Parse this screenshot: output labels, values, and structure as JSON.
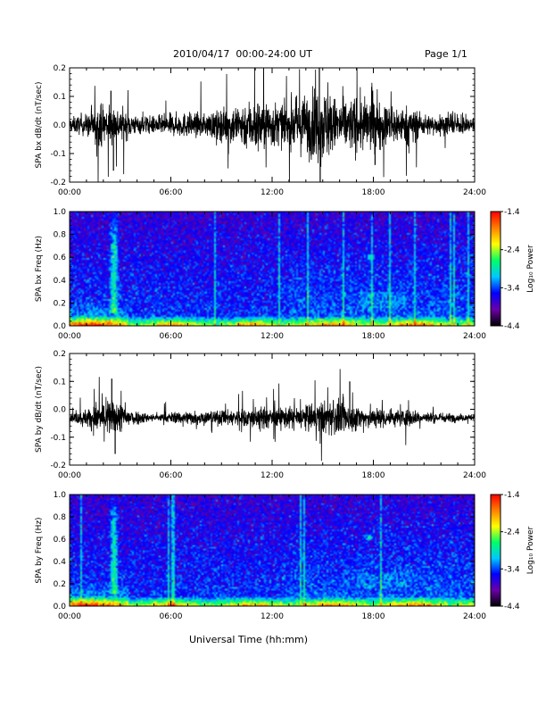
{
  "header": {
    "title": "2010/04/17  00:00-24:00 UT",
    "page": "Page 1/1"
  },
  "x_axis_title": "Universal Time (hh:mm)",
  "chart_data": [
    {
      "type": "line",
      "ylabel": "SPA bx dB/dt (nT/sec)",
      "xlim": [
        0,
        24
      ],
      "ylim": [
        -0.2,
        0.2
      ],
      "x_ticks": [
        "00:00",
        "06:00",
        "12:00",
        "18:00",
        "24:00"
      ],
      "y_ticks": [
        "-0.2",
        "-0.1",
        "0.0",
        "0.1",
        "0.2"
      ],
      "envelope_hours": [
        0,
        1,
        2,
        3,
        4,
        5,
        6,
        7,
        8,
        9,
        10,
        11,
        12,
        13,
        14,
        15,
        16,
        17,
        18,
        19,
        20,
        21,
        22,
        23,
        24
      ],
      "amplitude_envelope": [
        0.04,
        0.06,
        0.12,
        0.09,
        0.05,
        0.05,
        0.06,
        0.07,
        0.06,
        0.09,
        0.12,
        0.15,
        0.13,
        0.1,
        0.17,
        0.21,
        0.13,
        0.16,
        0.14,
        0.11,
        0.1,
        0.06,
        0.05,
        0.05,
        0.04
      ],
      "peaks": [
        {
          "x": 2.45,
          "y": 0.12
        },
        {
          "x": 2.6,
          "y": -0.16
        },
        {
          "x": 14.8,
          "y": 0.2
        },
        {
          "x": 14.85,
          "y": -0.2
        },
        {
          "x": 18.1,
          "y": -0.14
        }
      ]
    },
    {
      "type": "heatmap",
      "ylabel": "SPA bx Freq (Hz)",
      "xlim": [
        0,
        24
      ],
      "ylim": [
        0,
        1.0
      ],
      "x_ticks": [
        "00:00",
        "06:00",
        "12:00",
        "18:00",
        "24:00"
      ],
      "y_ticks": [
        "0.0",
        "0.2",
        "0.4",
        "0.6",
        "0.8",
        "1.0"
      ],
      "colorbar": {
        "label": "Log₁₀ Power",
        "ticks": [
          "-1.4",
          "-2.4",
          "-3.4",
          "-4.4"
        ],
        "range": [
          -4.4,
          -1.4
        ],
        "colors": [
          "#000000",
          "#6a00a8",
          "#0000ff",
          "#00c8ff",
          "#00ff66",
          "#ffff00",
          "#ff8000",
          "#ff0000"
        ]
      },
      "features": [
        {
          "desc": "Pc1 band",
          "x_range": [
            2.3,
            2.9
          ],
          "freq_range": [
            0.3,
            1.0
          ]
        },
        {
          "desc": "spot",
          "x": 17.8,
          "freq": 0.6
        },
        {
          "desc": "low-frequency enhancement",
          "x_range": [
            0,
            24
          ],
          "freq_range": [
            0,
            0.08
          ]
        }
      ]
    },
    {
      "type": "line",
      "ylabel": "SPA by dB/dt (nT/sec)",
      "xlim": [
        0,
        24
      ],
      "ylim": [
        -0.2,
        0.2
      ],
      "x_ticks": [
        "00:00",
        "06:00",
        "12:00",
        "18:00",
        "24:00"
      ],
      "y_ticks": [
        "-0.2",
        "-0.1",
        "0.0",
        "0.1",
        "0.2"
      ],
      "baseline": -0.03,
      "envelope_hours": [
        0,
        1,
        2,
        3,
        4,
        5,
        6,
        7,
        8,
        9,
        10,
        11,
        12,
        13,
        14,
        15,
        16,
        17,
        18,
        19,
        20,
        21,
        22,
        23,
        24
      ],
      "amplitude_envelope": [
        0.02,
        0.05,
        0.11,
        0.08,
        0.04,
        0.02,
        0.03,
        0.04,
        0.04,
        0.04,
        0.05,
        0.06,
        0.06,
        0.06,
        0.07,
        0.09,
        0.1,
        0.07,
        0.06,
        0.05,
        0.05,
        0.03,
        0.03,
        0.02,
        0.02
      ],
      "peaks": [
        {
          "x": 2.5,
          "y": 0.11
        },
        {
          "x": 2.7,
          "y": -0.16
        },
        {
          "x": 16.6,
          "y": 0.1
        }
      ]
    },
    {
      "type": "heatmap",
      "ylabel": "SPA by Freq (Hz)",
      "xlim": [
        0,
        24
      ],
      "ylim": [
        0,
        1.0
      ],
      "x_ticks": [
        "00:00",
        "06:00",
        "12:00",
        "18:00",
        "24:00"
      ],
      "y_ticks": [
        "0.0",
        "0.2",
        "0.4",
        "0.6",
        "0.8",
        "1.0"
      ],
      "colorbar": {
        "label": "Log₁₀ Power",
        "ticks": [
          "-1.4",
          "-2.4",
          "-3.4",
          "-4.4"
        ],
        "range": [
          -4.4,
          -1.4
        ],
        "colors": [
          "#000000",
          "#6a00a8",
          "#0000ff",
          "#00c8ff",
          "#00ff66",
          "#ffff00",
          "#ff8000",
          "#ff0000"
        ]
      },
      "features": [
        {
          "desc": "Pc1 band",
          "x_range": [
            2.3,
            2.9
          ],
          "freq_range": [
            0.3,
            1.0
          ]
        },
        {
          "desc": "spot",
          "x": 17.8,
          "freq": 0.62
        },
        {
          "desc": "low-frequency enhancement",
          "x_range": [
            0,
            24
          ],
          "freq_range": [
            0,
            0.08
          ]
        }
      ]
    }
  ]
}
